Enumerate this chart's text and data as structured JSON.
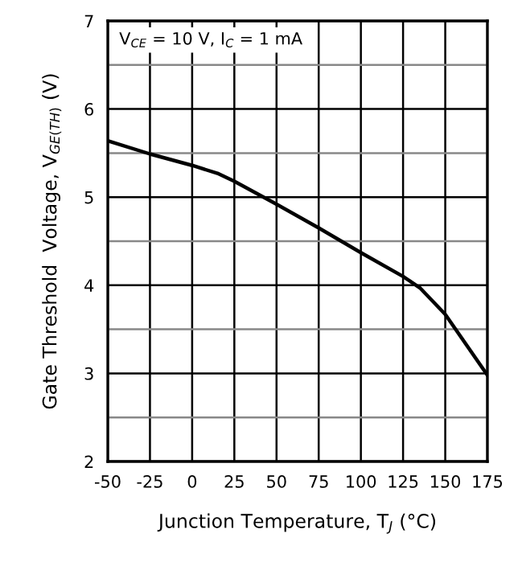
{
  "chart_data": {
    "type": "line",
    "xlabel": "Junction Temperature, T$_{J}$ (°C)",
    "ylabel": "Gate Threshold  Voltage, V$_{GE(TH)}$ (V)",
    "annotations": [
      "V$_{CE}$ = 10 V, I$_{C}$ = 1 mA"
    ],
    "x": [
      -50,
      -25,
      0,
      15,
      25,
      50,
      75,
      100,
      125,
      135,
      150,
      175
    ],
    "series": [
      {
        "color": "#000000",
        "values": [
          5.64,
          5.49,
          5.36,
          5.27,
          5.18,
          4.92,
          4.65,
          4.37,
          4.1,
          3.97,
          3.67,
          2.98
        ]
      }
    ],
    "xlim": [
      -50,
      175
    ],
    "xticks": [
      -50,
      -25,
      0,
      25,
      50,
      75,
      100,
      125,
      150,
      175
    ],
    "ylim": [
      2,
      7
    ],
    "yticks": [
      2,
      {
        "value": 2.5,
        "label": null
      },
      3,
      {
        "value": 3.5,
        "label": null
      },
      4,
      {
        "value": 4.5,
        "label": null
      },
      5,
      {
        "value": 5.5,
        "label": null
      },
      6,
      {
        "value": 6.5,
        "label": null
      },
      7
    ],
    "grid": true,
    "legend": false,
    "marker": "none",
    "line_style": "solid"
  }
}
